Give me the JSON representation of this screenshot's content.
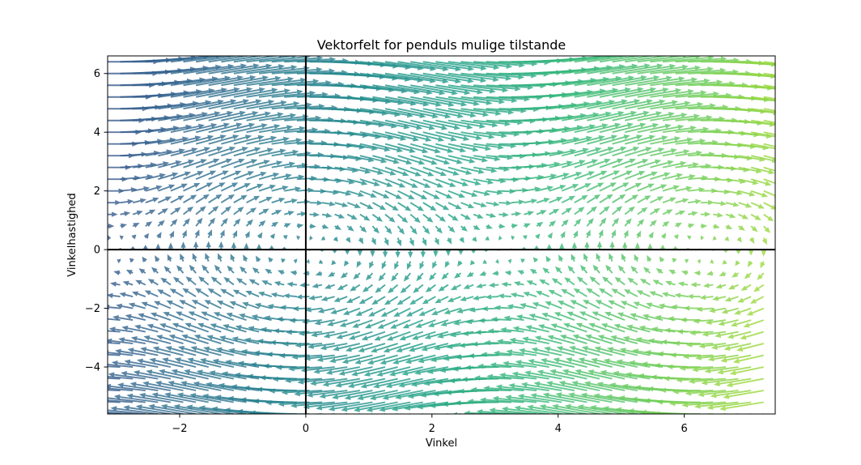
{
  "chart_data": {
    "type": "quiver",
    "title": "Vektorfelt for penduls mulige tilstande",
    "xlabel": "Vinkel",
    "ylabel": "Vinkelhastighed",
    "xlim": [
      -3.1416,
      7.4416
    ],
    "ylim": [
      -5.6,
      6.6
    ],
    "x_ticks": [
      -2,
      0,
      2,
      4,
      6
    ],
    "x_tick_labels": [
      "−2",
      "0",
      "2",
      "4",
      "6"
    ],
    "y_ticks": [
      -4,
      -2,
      0,
      2,
      4,
      6
    ],
    "y_tick_labels": [
      "−4",
      "−2",
      "0",
      "2",
      "4",
      "6"
    ],
    "field": {
      "dx": "angular_velocity",
      "dy": "-sin(angle)",
      "grid_x": {
        "start": -3.1416,
        "step": 0.2,
        "count": 53
      },
      "grid_y": {
        "start": -5.6,
        "step": 0.4,
        "count": 31
      },
      "colormap": "viridis",
      "color_by": "angle",
      "color_range": [
        0.28,
        0.86
      ],
      "opacity": 0.8,
      "zero_lines": true
    }
  }
}
